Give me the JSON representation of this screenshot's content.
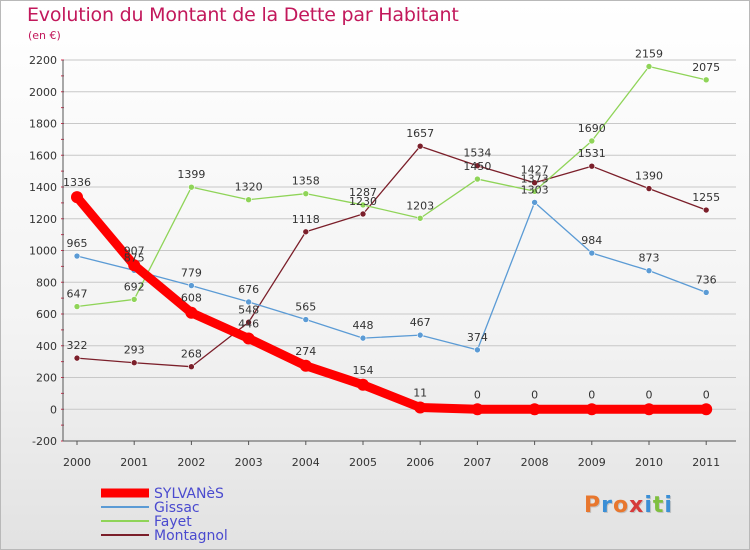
{
  "title": "Evolution du Montant de la Dette par Habitant",
  "subtitle": "(en €)",
  "brand": {
    "text": "Proxiti",
    "colors": [
      "#e8772e",
      "#3b8fd6",
      "#e8772e",
      "#d63b3b",
      "#3b8fd6",
      "#7fbf3f",
      "#3b8fd6"
    ]
  },
  "colors": {
    "SYLVANèS": "#ff0000",
    "Gissac": "#5b9bd5",
    "Fayet": "#8fd458",
    "Montagnol": "#7b1f2a",
    "title": "#c2185b",
    "legend_text": "#4a4acf",
    "grid": "#c8c8c8"
  },
  "chart_data": {
    "type": "line",
    "title": "Evolution du Montant de la Dette par Habitant",
    "subtitle": "(en €)",
    "x": [
      "2000",
      "2001",
      "2002",
      "2003",
      "2004",
      "2005",
      "2006",
      "2007",
      "2008",
      "2009",
      "2010",
      "2011"
    ],
    "ylim": [
      -200,
      2200
    ],
    "yticks": [
      -200,
      0,
      200,
      400,
      600,
      800,
      1000,
      1200,
      1400,
      1600,
      1800,
      2000,
      2200
    ],
    "grid": "horizontal",
    "legend": "bottom-left",
    "series": [
      {
        "name": "SYLVANèS",
        "values": [
          1336,
          907,
          608,
          446,
          274,
          154,
          11,
          0,
          0,
          0,
          0,
          0
        ]
      },
      {
        "name": "Gissac",
        "values": [
          965,
          875,
          779,
          676,
          565,
          448,
          467,
          374,
          1303,
          984,
          873,
          736
        ]
      },
      {
        "name": "Fayet",
        "values": [
          647,
          692,
          1399,
          1320,
          1358,
          1287,
          1203,
          1450,
          1373,
          1690,
          2159,
          2075
        ]
      },
      {
        "name": "Montagnol",
        "values": [
          322,
          293,
          268,
          548,
          1118,
          1230,
          1657,
          1534,
          1427,
          1531,
          1390,
          1255
        ]
      }
    ]
  }
}
